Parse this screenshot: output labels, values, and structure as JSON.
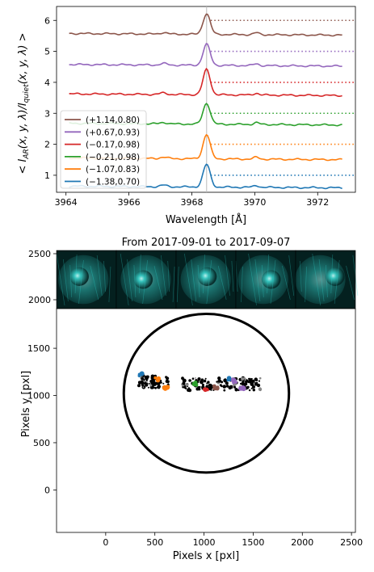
{
  "colors": {
    "brown": "#8c564b",
    "purple": "#9467bd",
    "red": "#d62728",
    "green": "#2ca02c",
    "orange": "#ff7f0e",
    "blue": "#1f77b4",
    "solar_dark": "#04201f",
    "solar_bright": "#2fd6d0"
  },
  "chart_data": [
    {
      "type": "line",
      "xlabel": "Wavelength [Å]",
      "ylabel": "< I_AR(x, y, λ)/I_quiet(x, y, λ) >",
      "xlim": [
        3963.7,
        3973.2
      ],
      "ylim": [
        0.45,
        6.45
      ],
      "xticks": [
        "3964",
        "3966",
        "3968",
        "3970",
        "3972"
      ],
      "yticks": [
        "1",
        "2",
        "3",
        "4",
        "5",
        "6"
      ],
      "vline_x": 3968.47,
      "legend_position": "center-left",
      "series": [
        {
          "name": "(+1.14,0.80)",
          "color": "brown",
          "offset": 5,
          "baseline": 0.55,
          "peak": 1.22,
          "level": 6
        },
        {
          "name": "(+0.67,0.93)",
          "color": "purple",
          "offset": 4,
          "baseline": 0.55,
          "peak": 1.23,
          "level": 5
        },
        {
          "name": "(−0.17,0.98)",
          "color": "red",
          "offset": 3,
          "baseline": 0.6,
          "peak": 1.42,
          "level": 4
        },
        {
          "name": "(−0.21,0.98)",
          "color": "green",
          "offset": 2,
          "baseline": 0.65,
          "peak": 1.33,
          "level": 3
        },
        {
          "name": "(−1.07,0.83)",
          "color": "orange",
          "offset": 1,
          "baseline": 0.53,
          "peak": 1.32,
          "level": 2
        },
        {
          "name": "(−1.38,0.70)",
          "color": "blue",
          "offset": 0,
          "baseline": 0.62,
          "peak": 1.35,
          "level": 1
        }
      ]
    },
    {
      "type": "image",
      "title": "From 2017-09-01 to 2017-09-07",
      "yticks": [
        "2000",
        "2500"
      ],
      "ylim": [
        1900,
        2560
      ],
      "panels": 5
    },
    {
      "type": "scatter",
      "xlabel": "Pixels x [pxl]",
      "ylabel": "Pixels y [pxl]",
      "xlim": [
        -500,
        2540
      ],
      "ylim": [
        -450,
        1920
      ],
      "xticks": [
        "0",
        "500",
        "1000",
        "1500",
        "2000",
        "2500"
      ],
      "yticks": [
        "0",
        "500",
        "1000",
        "1500"
      ],
      "circle": {
        "cx": 1024,
        "cy": 1024,
        "r": 840
      },
      "clusters": [
        {
          "color": "blue",
          "x": 360,
          "y": 1215
        },
        {
          "color": "orange",
          "x": 610,
          "y": 1085
        },
        {
          "color": "orange",
          "x": 520,
          "y": 1170
        },
        {
          "color": "red",
          "x": 1020,
          "y": 1075
        },
        {
          "color": "green",
          "x": 920,
          "y": 1125
        },
        {
          "color": "purple",
          "x": 1310,
          "y": 1150
        },
        {
          "color": "purple",
          "x": 1390,
          "y": 1075
        },
        {
          "color": "brown",
          "x": 1120,
          "y": 1090
        },
        {
          "color": "blue",
          "x": 1250,
          "y": 1175
        }
      ]
    }
  ]
}
